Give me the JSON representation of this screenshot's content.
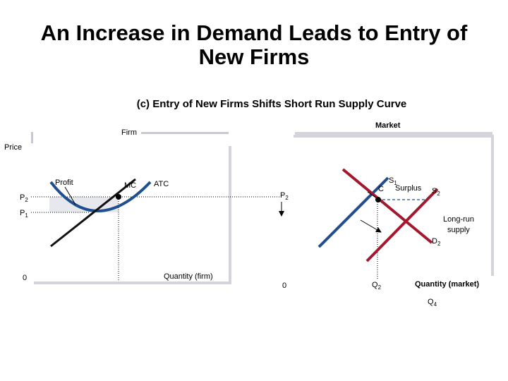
{
  "title_line1": "An Increase in Demand Leads to Entry of",
  "title_line2": "New Firms",
  "subtitle": "(c) Entry of New Firms Shifts Short Run Supply Curve",
  "firm": {
    "label": "Firm",
    "y_label": "Price",
    "x_label": "Quantity (firm)",
    "origin": "0",
    "profit": "Profit",
    "mc": "MC",
    "atc": "ATC",
    "p2": "P",
    "p2_sub": "2",
    "p1": "P",
    "p1_sub": "1"
  },
  "market": {
    "label": "Market",
    "x_label": "Quantity (market)",
    "origin": "0",
    "s1": "S",
    "s1_sub": "1",
    "c": "C",
    "surplus": "Surplus",
    "s2": "S",
    "s2_sub": "2",
    "p2": "P",
    "p2_sub": "2",
    "long_run_1": "Long-run",
    "long_run_2": "supply",
    "d2": "D",
    "d2_sub": "2",
    "q2": "Q",
    "q2_sub": "2",
    "q4": "Q",
    "q4_sub": "4"
  },
  "colors": {
    "supply_blue": "#1f4f8f",
    "supply_red": "#a3182e",
    "panel_shadow": "#d0d0d8",
    "profit_fill": "#e8eaef"
  }
}
